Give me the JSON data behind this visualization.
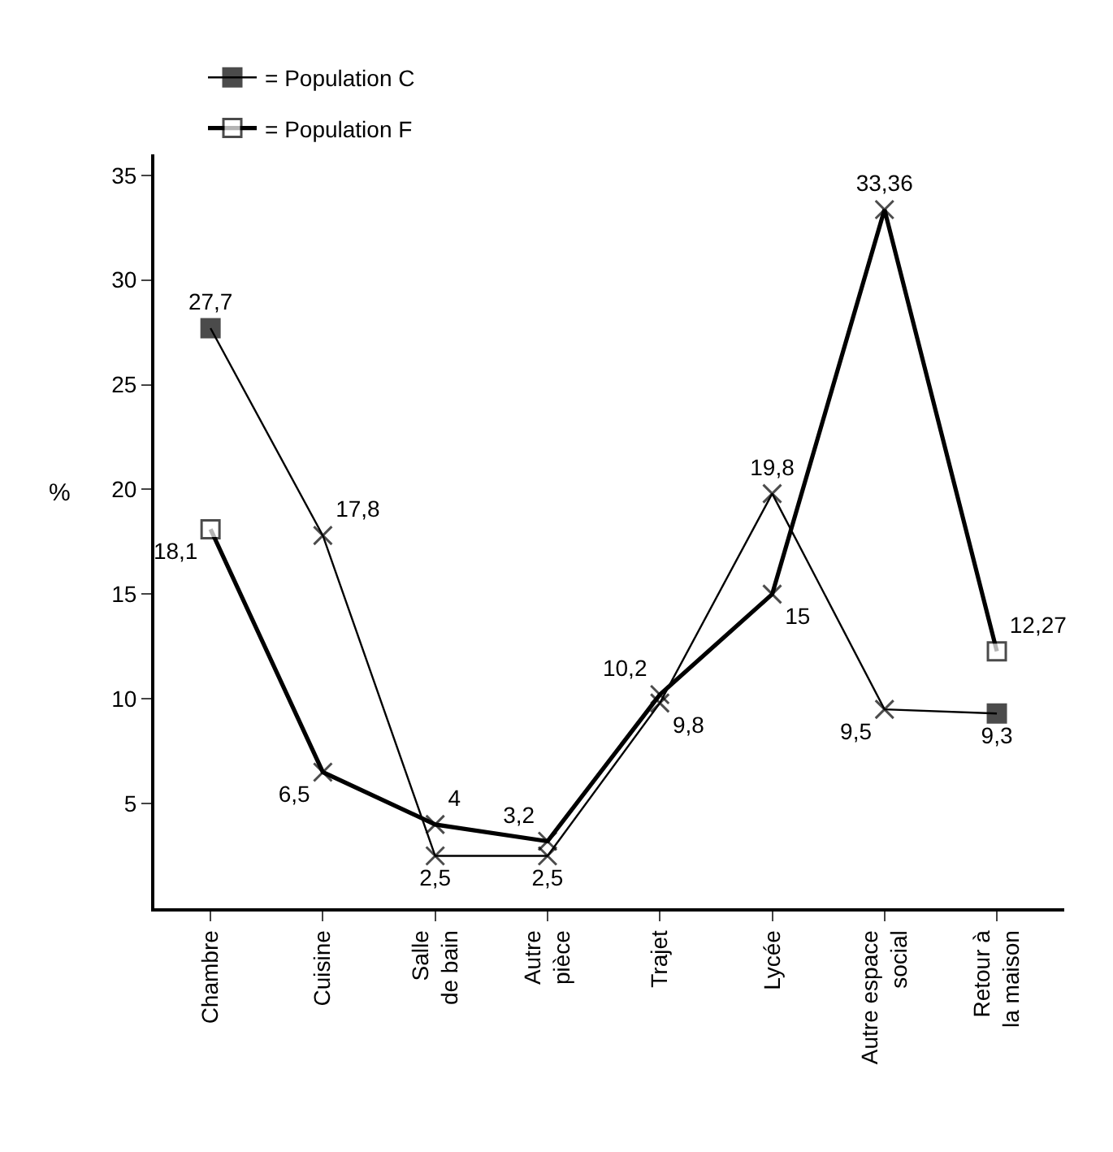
{
  "chart_data": {
    "type": "line",
    "ylabel": "%",
    "categories": [
      "Chambre",
      "Cuisine",
      "Salle de bain",
      "Autre pièce",
      "Trajet",
      "Lycée",
      "Autre espace social",
      "Retour à la maison"
    ],
    "series": [
      {
        "name": "= Population C",
        "color": "#000000",
        "values": [
          27.7,
          17.8,
          2.5,
          2.5,
          9.8,
          19.8,
          9.5,
          9.3
        ],
        "value_labels": [
          "27,7",
          "17,8",
          "2,5",
          "2,5",
          "9,8",
          "19,8",
          "9,5",
          "9,3"
        ]
      },
      {
        "name": "= Population F",
        "color": "#000000",
        "values": [
          18.1,
          6.5,
          4,
          3.2,
          10.2,
          15,
          33.36,
          12.27
        ],
        "value_labels": [
          "18,1",
          "6,5",
          "4",
          "3,2",
          "10,2",
          "15",
          "33,36",
          "12,27"
        ]
      }
    ],
    "ylim": [
      0,
      36
    ],
    "yticks": [
      5,
      10,
      15,
      20,
      25,
      30,
      35
    ],
    "grid": false,
    "legend": "top left",
    "marker": "square",
    "line_style": "solid"
  }
}
